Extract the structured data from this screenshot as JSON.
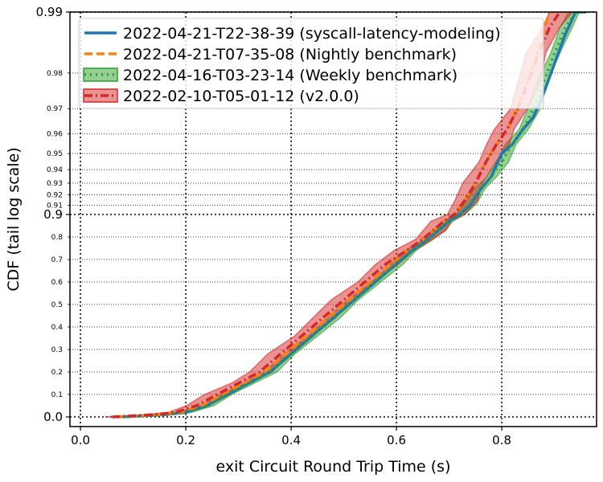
{
  "chart_data": {
    "type": "line",
    "xlabel": "exit Circuit Round Trip Time (s)",
    "ylabel": "CDF (tail log scale)",
    "xlim": [
      -0.02,
      0.98
    ],
    "x_ticks": [
      "0.0",
      "0.2",
      "0.4",
      "0.6",
      "0.8"
    ],
    "y_major_ticks": [
      "0.0",
      "0.9",
      "0.99"
    ],
    "y_minor_ticks": [
      "0.1",
      "0.2",
      "0.3",
      "0.4",
      "0.5",
      "0.6",
      "0.7",
      "0.8",
      "0.91",
      "0.92",
      "0.93",
      "0.94",
      "0.95",
      "0.96",
      "0.97",
      "0.98"
    ],
    "y_scale": "tail-log",
    "grid": true,
    "legend_position": "top-left",
    "series": [
      {
        "name": "2022-04-21-T22-38-39 (syscall-latency-modeling)",
        "color": "#1f77b4",
        "style": "solid",
        "band": 0,
        "x": [
          0.08,
          0.12,
          0.16,
          0.2,
          0.24,
          0.28,
          0.32,
          0.36,
          0.4,
          0.44,
          0.48,
          0.52,
          0.56,
          0.6,
          0.63,
          0.66,
          0.68,
          0.7,
          0.72,
          0.74,
          0.76,
          0.78,
          0.8,
          0.82,
          0.84,
          0.86,
          0.88,
          0.9,
          0.92,
          0.94,
          0.96
        ],
        "y": [
          0.0,
          0.005,
          0.01,
          0.02,
          0.05,
          0.1,
          0.15,
          0.2,
          0.28,
          0.36,
          0.44,
          0.52,
          0.6,
          0.68,
          0.74,
          0.79,
          0.83,
          0.87,
          0.9,
          0.91,
          0.925,
          0.935,
          0.95,
          0.955,
          0.962,
          0.967,
          0.975,
          0.982,
          0.987,
          0.99,
          0.99
        ]
      },
      {
        "name": "2022-04-21-T07-35-08 (Nightly benchmark)",
        "color": "#ff7f0e",
        "style": "dashed",
        "band": 0,
        "x": [
          0.07,
          0.11,
          0.15,
          0.19,
          0.23,
          0.27,
          0.31,
          0.35,
          0.39,
          0.43,
          0.47,
          0.51,
          0.55,
          0.59,
          0.62,
          0.65,
          0.67,
          0.69,
          0.71,
          0.73,
          0.75,
          0.77,
          0.79,
          0.81,
          0.83,
          0.85,
          0.87,
          0.89
        ],
        "y": [
          0.0,
          0.005,
          0.01,
          0.02,
          0.05,
          0.1,
          0.15,
          0.2,
          0.28,
          0.36,
          0.44,
          0.52,
          0.6,
          0.68,
          0.74,
          0.79,
          0.83,
          0.87,
          0.9,
          0.915,
          0.93,
          0.945,
          0.955,
          0.962,
          0.97,
          0.978,
          0.985,
          0.99
        ]
      },
      {
        "name": "2022-04-16-T03-23-14 (Weekly benchmark)",
        "color": "#2ca02c",
        "style": "dotted",
        "band": 0.012,
        "x": [
          0.08,
          0.12,
          0.16,
          0.2,
          0.24,
          0.28,
          0.32,
          0.36,
          0.4,
          0.44,
          0.48,
          0.52,
          0.56,
          0.6,
          0.63,
          0.66,
          0.68,
          0.7,
          0.72,
          0.74,
          0.76,
          0.78,
          0.8,
          0.82,
          0.84,
          0.86,
          0.88,
          0.9,
          0.92,
          0.94,
          0.96
        ],
        "y": [
          0.0,
          0.005,
          0.01,
          0.02,
          0.05,
          0.1,
          0.15,
          0.2,
          0.28,
          0.36,
          0.44,
          0.52,
          0.6,
          0.68,
          0.74,
          0.79,
          0.83,
          0.87,
          0.9,
          0.912,
          0.925,
          0.935,
          0.945,
          0.955,
          0.962,
          0.97,
          0.978,
          0.984,
          0.988,
          0.99,
          0.99
        ]
      },
      {
        "name": "2022-02-10-T05-01-12 (v2.0.0)",
        "color": "#d62728",
        "style": "dashdot",
        "band": 0.022,
        "x": [
          0.06,
          0.1,
          0.14,
          0.18,
          0.22,
          0.26,
          0.3,
          0.34,
          0.38,
          0.42,
          0.46,
          0.5,
          0.54,
          0.58,
          0.62,
          0.65,
          0.67,
          0.69,
          0.71,
          0.73,
          0.75,
          0.77,
          0.79,
          0.81,
          0.83,
          0.85,
          0.87,
          0.89,
          0.91
        ],
        "y": [
          0.0,
          0.005,
          0.01,
          0.02,
          0.05,
          0.1,
          0.15,
          0.2,
          0.28,
          0.36,
          0.44,
          0.52,
          0.6,
          0.68,
          0.74,
          0.79,
          0.83,
          0.87,
          0.9,
          0.915,
          0.93,
          0.945,
          0.955,
          0.962,
          0.97,
          0.978,
          0.984,
          0.988,
          0.99
        ]
      }
    ]
  }
}
